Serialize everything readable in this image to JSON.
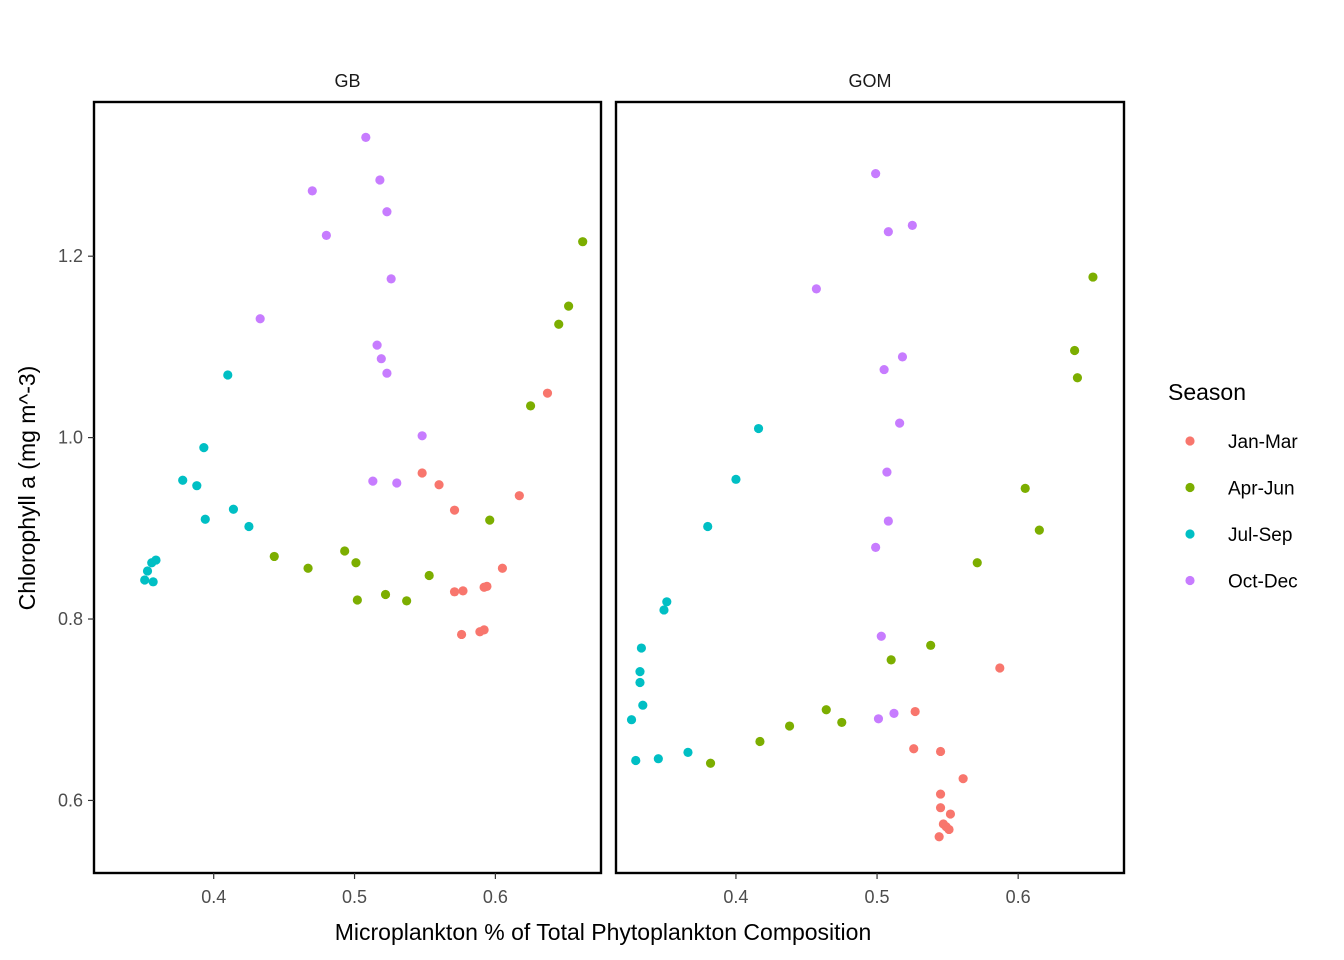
{
  "chart_data": {
    "type": "scatter",
    "title": "",
    "xlabel": "Microplankton % of Total Phytoplankton Composition",
    "ylabel": "Chlorophyll a (mg m^-3)",
    "xlim": [
      0.315,
      0.675
    ],
    "ylim": [
      0.52,
      1.37
    ],
    "xticks": [
      "0.4",
      "0.5",
      "0.6"
    ],
    "yticks": [
      "0.6",
      "0.8",
      "1.0",
      "1.2"
    ],
    "grid": false,
    "legend": {
      "title": "Season",
      "placement": "right",
      "entries": [
        {
          "name": "Jan-Mar",
          "color": "#F8766D"
        },
        {
          "name": "Apr-Jun",
          "color": "#7CAE00"
        },
        {
          "name": "Jul-Sep",
          "color": "#00BFC4"
        },
        {
          "name": "Oct-Dec",
          "color": "#C77CFF"
        }
      ]
    },
    "panels": [
      {
        "label": "GB",
        "series": [
          {
            "name": "Jan-Mar",
            "points": [
              [
                0.548,
                0.961
              ],
              [
                0.56,
                0.948
              ],
              [
                0.571,
                0.92
              ],
              [
                0.617,
                0.936
              ],
              [
                0.637,
                1.049
              ],
              [
                0.605,
                0.856
              ],
              [
                0.592,
                0.835
              ],
              [
                0.594,
                0.836
              ],
              [
                0.571,
                0.83
              ],
              [
                0.577,
                0.831
              ],
              [
                0.576,
                0.783
              ],
              [
                0.589,
                0.786
              ],
              [
                0.592,
                0.788
              ]
            ]
          },
          {
            "name": "Apr-Jun",
            "points": [
              [
                0.662,
                1.216
              ],
              [
                0.652,
                1.145
              ],
              [
                0.645,
                1.125
              ],
              [
                0.625,
                1.035
              ],
              [
                0.596,
                0.909
              ],
              [
                0.553,
                0.848
              ],
              [
                0.537,
                0.82
              ],
              [
                0.522,
                0.827
              ],
              [
                0.502,
                0.821
              ],
              [
                0.501,
                0.862
              ],
              [
                0.493,
                0.875
              ],
              [
                0.467,
                0.856
              ],
              [
                0.443,
                0.869
              ]
            ]
          },
          {
            "name": "Jul-Sep",
            "points": [
              [
                0.41,
                1.069
              ],
              [
                0.393,
                0.989
              ],
              [
                0.378,
                0.953
              ],
              [
                0.388,
                0.947
              ],
              [
                0.394,
                0.91
              ],
              [
                0.414,
                0.921
              ],
              [
                0.425,
                0.902
              ],
              [
                0.359,
                0.865
              ],
              [
                0.356,
                0.862
              ],
              [
                0.353,
                0.853
              ],
              [
                0.351,
                0.843
              ],
              [
                0.357,
                0.841
              ]
            ]
          },
          {
            "name": "Oct-Dec",
            "points": [
              [
                0.508,
                1.331
              ],
              [
                0.518,
                1.284
              ],
              [
                0.47,
                1.272
              ],
              [
                0.523,
                1.249
              ],
              [
                0.48,
                1.223
              ],
              [
                0.526,
                1.175
              ],
              [
                0.433,
                1.131
              ],
              [
                0.516,
                1.102
              ],
              [
                0.519,
                1.087
              ],
              [
                0.523,
                1.071
              ],
              [
                0.548,
                1.002
              ],
              [
                0.513,
                0.952
              ],
              [
                0.53,
                0.95
              ]
            ]
          }
        ]
      },
      {
        "label": "GOM",
        "series": [
          {
            "name": "Jan-Mar",
            "points": [
              [
                0.587,
                0.746
              ],
              [
                0.527,
                0.698
              ],
              [
                0.526,
                0.657
              ],
              [
                0.545,
                0.654
              ],
              [
                0.561,
                0.624
              ],
              [
                0.545,
                0.607
              ],
              [
                0.545,
                0.592
              ],
              [
                0.552,
                0.585
              ],
              [
                0.547,
                0.574
              ],
              [
                0.549,
                0.571
              ],
              [
                0.551,
                0.568
              ],
              [
                0.544,
                0.56
              ]
            ]
          },
          {
            "name": "Apr-Jun",
            "points": [
              [
                0.653,
                1.177
              ],
              [
                0.64,
                1.096
              ],
              [
                0.642,
                1.066
              ],
              [
                0.605,
                0.944
              ],
              [
                0.615,
                0.898
              ],
              [
                0.571,
                0.862
              ],
              [
                0.538,
                0.771
              ],
              [
                0.51,
                0.755
              ],
              [
                0.464,
                0.7
              ],
              [
                0.475,
                0.686
              ],
              [
                0.438,
                0.682
              ],
              [
                0.417,
                0.665
              ],
              [
                0.382,
                0.641
              ]
            ]
          },
          {
            "name": "Jul-Sep",
            "points": [
              [
                0.416,
                1.01
              ],
              [
                0.4,
                0.954
              ],
              [
                0.38,
                0.902
              ],
              [
                0.351,
                0.819
              ],
              [
                0.349,
                0.81
              ],
              [
                0.333,
                0.768
              ],
              [
                0.332,
                0.742
              ],
              [
                0.332,
                0.73
              ],
              [
                0.334,
                0.705
              ],
              [
                0.326,
                0.689
              ],
              [
                0.366,
                0.653
              ],
              [
                0.345,
                0.646
              ],
              [
                0.329,
                0.644
              ]
            ]
          },
          {
            "name": "Oct-Dec",
            "points": [
              [
                0.499,
                1.291
              ],
              [
                0.525,
                1.234
              ],
              [
                0.508,
                1.227
              ],
              [
                0.457,
                1.164
              ],
              [
                0.518,
                1.089
              ],
              [
                0.505,
                1.075
              ],
              [
                0.516,
                1.016
              ],
              [
                0.507,
                0.962
              ],
              [
                0.508,
                0.908
              ],
              [
                0.499,
                0.879
              ],
              [
                0.503,
                0.781
              ],
              [
                0.512,
                0.696
              ],
              [
                0.501,
                0.69
              ]
            ]
          }
        ]
      }
    ]
  }
}
